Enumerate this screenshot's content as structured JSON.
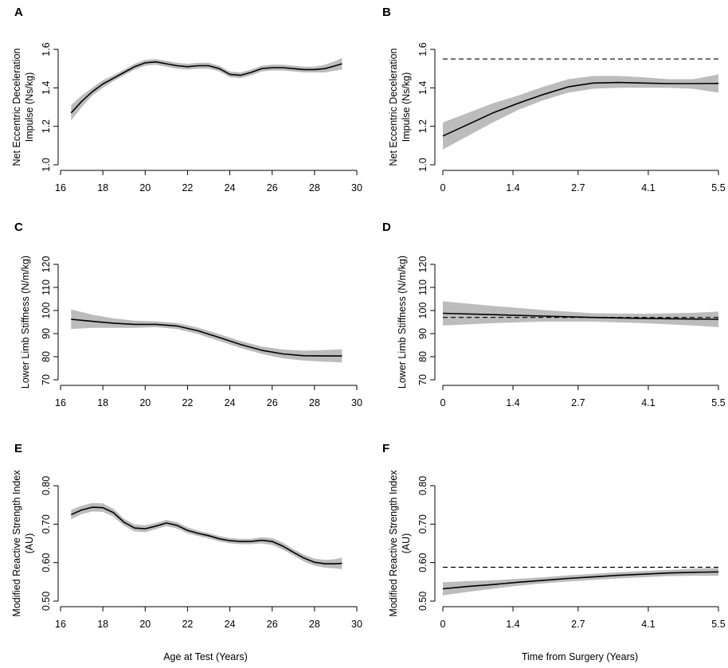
{
  "figure": {
    "x_label_left": "Age at Test (Years)",
    "x_label_right": "Time from Surgery (Years)"
  },
  "chart_data": [
    {
      "panel": "A",
      "type": "line",
      "ylabel_lines": [
        "Net Eccentric Deceleration",
        "Impulse (Ns/kg)"
      ],
      "xlim": [
        16,
        30
      ],
      "ylim": [
        1.0,
        1.6
      ],
      "xticks": [
        "16",
        "18",
        "20",
        "22",
        "24",
        "26",
        "28",
        "30"
      ],
      "xtick_values": [
        16,
        18,
        20,
        22,
        24,
        26,
        28,
        30
      ],
      "yticks": [
        "1.0",
        "1.2",
        "1.4",
        "1.6"
      ],
      "ytick_values": [
        1.0,
        1.2,
        1.4,
        1.6
      ],
      "series": [
        {
          "name": "fit",
          "x": [
            16.5,
            17,
            17.5,
            18,
            18.5,
            19,
            19.5,
            20,
            20.5,
            21,
            21.5,
            22,
            22.5,
            23,
            23.5,
            24,
            24.5,
            25,
            25.5,
            26,
            26.5,
            27,
            27.5,
            28,
            28.5,
            29,
            29.3
          ],
          "y": [
            1.27,
            1.33,
            1.38,
            1.42,
            1.45,
            1.48,
            1.51,
            1.53,
            1.535,
            1.525,
            1.515,
            1.51,
            1.515,
            1.515,
            1.5,
            1.47,
            1.465,
            1.48,
            1.5,
            1.505,
            1.505,
            1.5,
            1.495,
            1.495,
            1.5,
            1.515,
            1.525
          ],
          "lower": [
            1.23,
            1.3,
            1.36,
            1.4,
            1.435,
            1.465,
            1.495,
            1.515,
            1.52,
            1.51,
            1.5,
            1.495,
            1.5,
            1.5,
            1.485,
            1.455,
            1.45,
            1.465,
            1.485,
            1.49,
            1.49,
            1.485,
            1.48,
            1.48,
            1.48,
            1.49,
            1.495
          ],
          "upper": [
            1.31,
            1.36,
            1.4,
            1.44,
            1.465,
            1.495,
            1.525,
            1.545,
            1.55,
            1.54,
            1.53,
            1.525,
            1.53,
            1.53,
            1.515,
            1.485,
            1.48,
            1.495,
            1.515,
            1.52,
            1.52,
            1.515,
            1.51,
            1.51,
            1.52,
            1.54,
            1.555
          ]
        }
      ]
    },
    {
      "panel": "B",
      "type": "line",
      "ylabel_lines": [
        "Net Eccentric Deceleration",
        "Impulse (Ns/kg)"
      ],
      "xlim": [
        0,
        5.5
      ],
      "ylim": [
        1.0,
        1.6
      ],
      "xticks": [
        "0",
        "1.4",
        "2.7",
        "4.1",
        "5.5"
      ],
      "xtick_values": [
        0,
        1.4,
        2.7,
        4.1,
        5.5
      ],
      "yticks": [
        "1.0",
        "1.2",
        "1.4",
        "1.6"
      ],
      "ytick_values": [
        1.0,
        1.2,
        1.4,
        1.6
      ],
      "reference_line": 1.55,
      "series": [
        {
          "name": "fit",
          "x": [
            0,
            0.5,
            1.0,
            1.5,
            2.0,
            2.5,
            3.0,
            3.5,
            4.0,
            4.5,
            5.0,
            5.5
          ],
          "y": [
            1.15,
            1.21,
            1.27,
            1.32,
            1.365,
            1.405,
            1.425,
            1.428,
            1.425,
            1.422,
            1.422,
            1.423
          ],
          "lower": [
            1.08,
            1.15,
            1.22,
            1.285,
            1.335,
            1.375,
            1.395,
            1.4,
            1.4,
            1.4,
            1.395,
            1.375
          ],
          "upper": [
            1.22,
            1.27,
            1.32,
            1.36,
            1.405,
            1.445,
            1.462,
            1.462,
            1.455,
            1.445,
            1.445,
            1.47
          ]
        }
      ]
    },
    {
      "panel": "C",
      "type": "line",
      "ylabel_lines": [
        "Lower Limb Stiffness (N/m/kg)"
      ],
      "xlim": [
        16,
        30
      ],
      "ylim": [
        70,
        120
      ],
      "xticks": [
        "16",
        "18",
        "20",
        "22",
        "24",
        "26",
        "28",
        "30"
      ],
      "xtick_values": [
        16,
        18,
        20,
        22,
        24,
        26,
        28,
        30
      ],
      "yticks": [
        "70",
        "80",
        "90",
        "100",
        "110",
        "120"
      ],
      "ytick_values": [
        70,
        80,
        90,
        100,
        110,
        120
      ],
      "series": [
        {
          "name": "fit",
          "x": [
            16.5,
            17.5,
            18.5,
            19.5,
            20.5,
            21.5,
            22.5,
            23.5,
            24.5,
            25.5,
            26.5,
            27.5,
            28.5,
            29.3
          ],
          "y": [
            96.2,
            95.3,
            94.5,
            94.0,
            94.0,
            93.3,
            91.2,
            88.3,
            85.3,
            82.8,
            81.2,
            80.4,
            80.3,
            80.3
          ],
          "lower": [
            92.0,
            92.5,
            92.5,
            92.5,
            92.8,
            92.0,
            89.8,
            86.8,
            83.8,
            81.2,
            79.3,
            78.3,
            77.8,
            77.5
          ],
          "upper": [
            100.5,
            98.2,
            96.6,
            95.6,
            95.3,
            94.6,
            92.6,
            89.8,
            86.8,
            84.4,
            83.1,
            82.6,
            82.9,
            83.2
          ]
        }
      ]
    },
    {
      "panel": "D",
      "type": "line",
      "ylabel_lines": [
        "Lower Limb Stiffness (N/m/kg)"
      ],
      "xlim": [
        0,
        5.5
      ],
      "ylim": [
        70,
        120
      ],
      "xticks": [
        "0",
        "1.4",
        "2.7",
        "4.1",
        "5.5"
      ],
      "xtick_values": [
        0,
        1.4,
        2.7,
        4.1,
        5.5
      ],
      "yticks": [
        "70",
        "80",
        "90",
        "100",
        "110",
        "120"
      ],
      "ytick_values": [
        70,
        80,
        90,
        100,
        110,
        120
      ],
      "reference_line": 97,
      "series": [
        {
          "name": "fit",
          "x": [
            0,
            1.0,
            2.0,
            3.0,
            4.0,
            5.0,
            5.5
          ],
          "y": [
            98.8,
            98.2,
            97.6,
            97.0,
            96.6,
            96.3,
            96.2
          ],
          "lower": [
            93.5,
            94.5,
            95.2,
            95.2,
            94.5,
            93.5,
            92.8
          ],
          "upper": [
            104.0,
            102.0,
            100.2,
            98.8,
            98.6,
            99.0,
            99.5
          ]
        }
      ]
    },
    {
      "panel": "E",
      "type": "line",
      "ylabel_lines": [
        "Modified Reactive Strength Index",
        "(AU)"
      ],
      "xlim": [
        16,
        30
      ],
      "ylim": [
        0.5,
        0.8
      ],
      "xticks": [
        "16",
        "18",
        "20",
        "22",
        "24",
        "26",
        "28",
        "30"
      ],
      "xtick_values": [
        16,
        18,
        20,
        22,
        24,
        26,
        28,
        30
      ],
      "yticks": [
        "0.50",
        "0.60",
        "0.70",
        "0.80"
      ],
      "ytick_values": [
        0.5,
        0.6,
        0.7,
        0.8
      ],
      "series": [
        {
          "name": "fit",
          "x": [
            16.5,
            17,
            17.5,
            18,
            18.5,
            19,
            19.5,
            20,
            20.5,
            21,
            21.5,
            22,
            22.5,
            23,
            23.5,
            24,
            24.5,
            25,
            25.5,
            26,
            26.5,
            27,
            27.5,
            28,
            28.5,
            29,
            29.3
          ],
          "y": [
            0.725,
            0.737,
            0.744,
            0.743,
            0.73,
            0.705,
            0.69,
            0.688,
            0.695,
            0.703,
            0.697,
            0.684,
            0.676,
            0.67,
            0.662,
            0.657,
            0.655,
            0.655,
            0.658,
            0.655,
            0.643,
            0.627,
            0.612,
            0.601,
            0.597,
            0.597,
            0.598
          ],
          "lower": [
            0.713,
            0.726,
            0.733,
            0.732,
            0.72,
            0.696,
            0.681,
            0.679,
            0.687,
            0.695,
            0.689,
            0.676,
            0.669,
            0.663,
            0.655,
            0.65,
            0.648,
            0.648,
            0.65,
            0.646,
            0.634,
            0.619,
            0.603,
            0.592,
            0.587,
            0.585,
            0.583
          ],
          "upper": [
            0.737,
            0.748,
            0.755,
            0.754,
            0.74,
            0.714,
            0.699,
            0.697,
            0.703,
            0.711,
            0.705,
            0.692,
            0.683,
            0.677,
            0.669,
            0.664,
            0.662,
            0.662,
            0.666,
            0.664,
            0.652,
            0.635,
            0.621,
            0.61,
            0.607,
            0.609,
            0.613
          ]
        }
      ]
    },
    {
      "panel": "F",
      "type": "line",
      "ylabel_lines": [
        "Modified Reactive Strength Index",
        "(AU)"
      ],
      "xlim": [
        0,
        5.5
      ],
      "ylim": [
        0.5,
        0.8
      ],
      "xticks": [
        "0",
        "1.4",
        "2.7",
        "4.1",
        "5.5"
      ],
      "xtick_values": [
        0,
        1.4,
        2.7,
        4.1,
        5.5
      ],
      "yticks": [
        "0.50",
        "0.60",
        "0.70",
        "0.80"
      ],
      "ytick_values": [
        0.5,
        0.6,
        0.7,
        0.8
      ],
      "reference_line": 0.588,
      "series": [
        {
          "name": "fit",
          "x": [
            0,
            0.5,
            1.0,
            1.5,
            2.0,
            2.5,
            3.0,
            3.5,
            4.0,
            4.5,
            5.0,
            5.5
          ],
          "y": [
            0.532,
            0.538,
            0.543,
            0.549,
            0.554,
            0.559,
            0.563,
            0.567,
            0.57,
            0.573,
            0.575,
            0.576
          ],
          "lower": [
            0.515,
            0.524,
            0.532,
            0.54,
            0.546,
            0.551,
            0.555,
            0.559,
            0.562,
            0.565,
            0.566,
            0.566
          ],
          "upper": [
            0.549,
            0.552,
            0.554,
            0.558,
            0.562,
            0.567,
            0.571,
            0.575,
            0.578,
            0.581,
            0.584,
            0.586
          ]
        }
      ]
    }
  ]
}
